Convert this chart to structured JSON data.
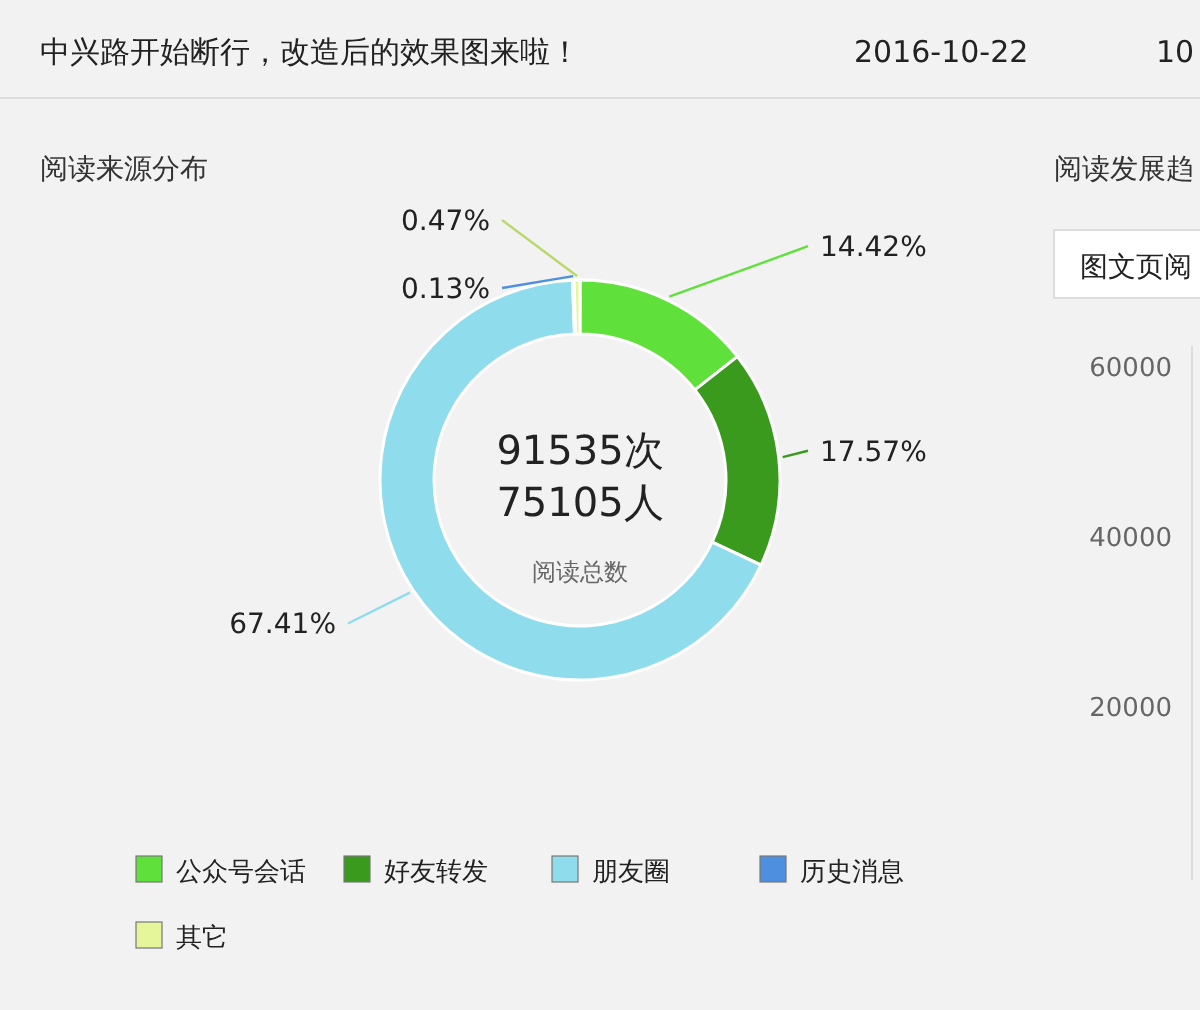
{
  "chart_data": [
    {
      "type": "donut",
      "title": "阅读来源分布",
      "categories": [
        "公众号会话",
        "好友转发",
        "朋友圈",
        "历史消息",
        "其它"
      ],
      "values": [
        14.42,
        17.57,
        67.41,
        0.13,
        0.47
      ],
      "colors": [
        "#5fe03a",
        "#3a9a1e",
        "#8fdcec",
        "#4f8fe0",
        "#e4f59a"
      ],
      "value_labels": [
        "14.42%",
        "17.57%",
        "67.41%",
        "0.13%",
        "0.47%"
      ],
      "legend": "bottom",
      "annotations": [
        "中兴路开始断行，改造后的效果图来啦！",
        "2016-10-22",
        "10",
        "91535次",
        "75105人",
        "阅读总数"
      ]
    },
    {
      "type": "other",
      "title": "阅读发展趋",
      "annotations": [
        "图文页阅",
        "60000",
        "40000",
        "20000"
      ]
    }
  ]
}
